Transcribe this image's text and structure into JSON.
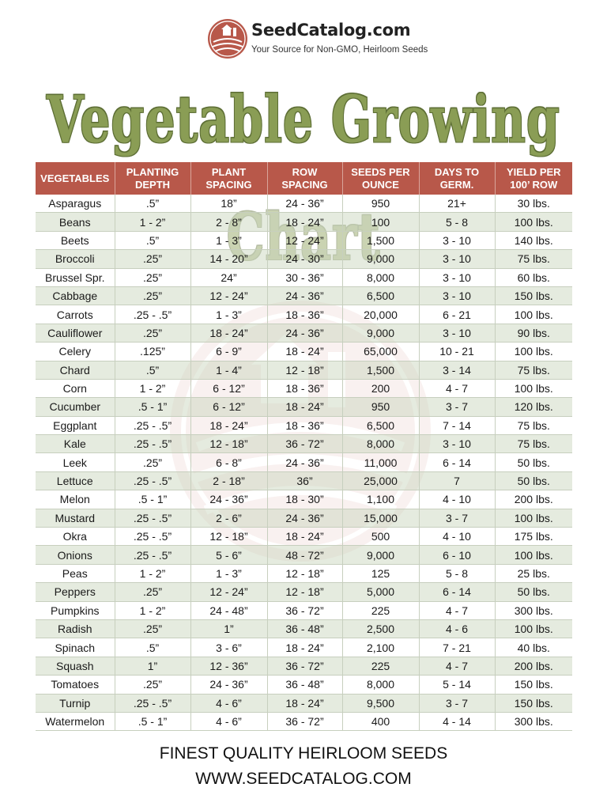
{
  "header": {
    "brand": "SeedCatalog.com",
    "tagline": "Your Source for Non-GMO, Heirloom Seeds",
    "logo_icon": "seed-farm-logo-icon"
  },
  "title": "Vegetable Growing Chart",
  "colors": {
    "header_bg": "#b8584a",
    "title": "#8a9d55",
    "row_alt": "#dce4d4"
  },
  "table": {
    "headers": [
      [
        "VEGETABLES"
      ],
      [
        "PLANTING",
        "DEPTH"
      ],
      [
        "PLANT",
        "SPACING"
      ],
      [
        "ROW",
        "SPACING"
      ],
      [
        "SEEDS PER",
        "OUNCE"
      ],
      [
        "DAYS TO",
        "GERM."
      ],
      [
        "YIELD PER",
        "100’ ROW"
      ]
    ],
    "rows": [
      [
        "Asparagus",
        ".5”",
        "18”",
        "24 - 36”",
        "950",
        "21+",
        "30 lbs."
      ],
      [
        "Beans",
        "1 - 2”",
        "2 - 8”",
        "18 - 24”",
        "100",
        "5 - 8",
        "100 lbs."
      ],
      [
        "Beets",
        ".5”",
        "1 - 3”",
        "12 - 24”",
        "1,500",
        "3 - 10",
        "140 lbs."
      ],
      [
        "Broccoli",
        ".25”",
        "14 - 20”",
        "24 - 30”",
        "9,000",
        "3 - 10",
        "75 lbs."
      ],
      [
        "Brussel Spr.",
        ".25”",
        "24”",
        "30 - 36”",
        "8,000",
        "3 - 10",
        "60 lbs."
      ],
      [
        "Cabbage",
        ".25”",
        "12 - 24”",
        "24 - 36”",
        "6,500",
        "3 - 10",
        "150 lbs."
      ],
      [
        "Carrots",
        ".25 - .5”",
        "1 - 3”",
        "18 - 36”",
        "20,000",
        "6 - 21",
        "100 lbs."
      ],
      [
        "Cauliflower",
        ".25”",
        "18 - 24”",
        "24 - 36”",
        "9,000",
        "3 - 10",
        "90 lbs."
      ],
      [
        "Celery",
        ".125”",
        "6 - 9”",
        "18 - 24”",
        "65,000",
        "10 - 21",
        "100 lbs."
      ],
      [
        "Chard",
        ".5”",
        "1 - 4”",
        "12 - 18”",
        "1,500",
        "3 - 14",
        "75 lbs."
      ],
      [
        "Corn",
        "1 - 2”",
        "6 - 12”",
        "18 - 36”",
        "200",
        "4 - 7",
        "100 lbs."
      ],
      [
        "Cucumber",
        ".5 - 1”",
        "6 - 12”",
        "18 - 24”",
        "950",
        "3 - 7",
        "120 lbs."
      ],
      [
        "Eggplant",
        ".25 - .5”",
        "18 - 24”",
        "18 - 36”",
        "6,500",
        "7 - 14",
        "75 lbs."
      ],
      [
        "Kale",
        ".25 - .5”",
        "12 - 18”",
        "36 - 72”",
        "8,000",
        "3 - 10",
        "75 lbs."
      ],
      [
        "Leek",
        ".25”",
        "6 - 8”",
        "24 - 36”",
        "11,000",
        "6 - 14",
        "50 lbs."
      ],
      [
        "Lettuce",
        ".25 - .5”",
        "2 - 18”",
        "36”",
        "25,000",
        "7",
        "50 lbs."
      ],
      [
        "Melon",
        ".5 - 1”",
        "24 - 36”",
        "18 - 30”",
        "1,100",
        "4 - 10",
        "200 lbs."
      ],
      [
        "Mustard",
        ".25 - .5”",
        "2 - 6”",
        "24 - 36”",
        "15,000",
        "3 - 7",
        "100 lbs."
      ],
      [
        "Okra",
        ".25 - .5”",
        "12 - 18”",
        "18 - 24”",
        "500",
        "4 - 10",
        "175 lbs."
      ],
      [
        "Onions",
        ".25 - .5”",
        "5 - 6”",
        "48 - 72”",
        "9,000",
        "6 - 10",
        "100 lbs."
      ],
      [
        "Peas",
        "1 - 2”",
        "1 - 3”",
        "12 - 18”",
        "125",
        "5 - 8",
        "25 lbs."
      ],
      [
        "Peppers",
        ".25”",
        "12 - 24”",
        "12 - 18”",
        "5,000",
        "6 - 14",
        "50 lbs."
      ],
      [
        "Pumpkins",
        "1 - 2”",
        "24 - 48”",
        "36 - 72”",
        "225",
        "4 - 7",
        "300 lbs."
      ],
      [
        "Radish",
        ".25”",
        "1”",
        "36 - 48”",
        "2,500",
        "4 - 6",
        "100 lbs."
      ],
      [
        "Spinach",
        ".5”",
        "3 - 6”",
        "18 - 24”",
        "2,100",
        "7 - 21",
        "40 lbs."
      ],
      [
        "Squash",
        "1”",
        "12 - 36”",
        "36 - 72”",
        "225",
        "4 - 7",
        "200 lbs."
      ],
      [
        "Tomatoes",
        ".25”",
        "24 - 36”",
        "36 - 48”",
        "8,000",
        "5 - 14",
        "150 lbs."
      ],
      [
        "Turnip",
        ".25 - .5”",
        "4 - 6”",
        "18 - 24”",
        "9,500",
        "3 - 7",
        "150 lbs."
      ],
      [
        "Watermelon",
        ".5 - 1”",
        "4 - 6”",
        "36 - 72”",
        "400",
        "4 - 14",
        "300 lbs."
      ]
    ]
  },
  "footer": {
    "line1": "FINEST QUALITY HEIRLOOM SEEDS",
    "line2": "WWW.SEEDCATALOG.COM"
  }
}
